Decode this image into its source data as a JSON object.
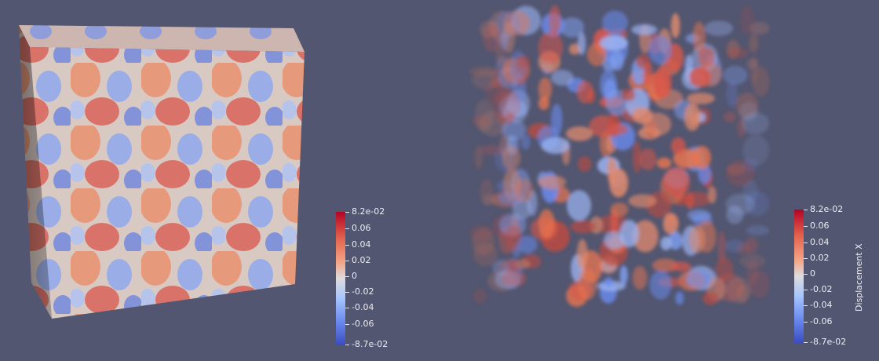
{
  "left_view": {
    "colorbar": {
      "title": "",
      "labels": [
        "8.2e-02",
        "0.06",
        "0.04",
        "0.02",
        "0",
        "-0.02",
        "-0.04",
        "-0.06",
        "-8.7e-02"
      ]
    }
  },
  "right_view": {
    "colorbar": {
      "title": "Displacement X",
      "labels": [
        "8.2e-02",
        "0.06",
        "0.04",
        "0.02",
        "0",
        "-0.02",
        "-0.04",
        "-0.06",
        "-8.7e-02"
      ]
    }
  },
  "colors": {
    "background": "#525670",
    "positive": "#b40426",
    "neutral": "#dddcdc",
    "negative": "#3b4cc0"
  }
}
